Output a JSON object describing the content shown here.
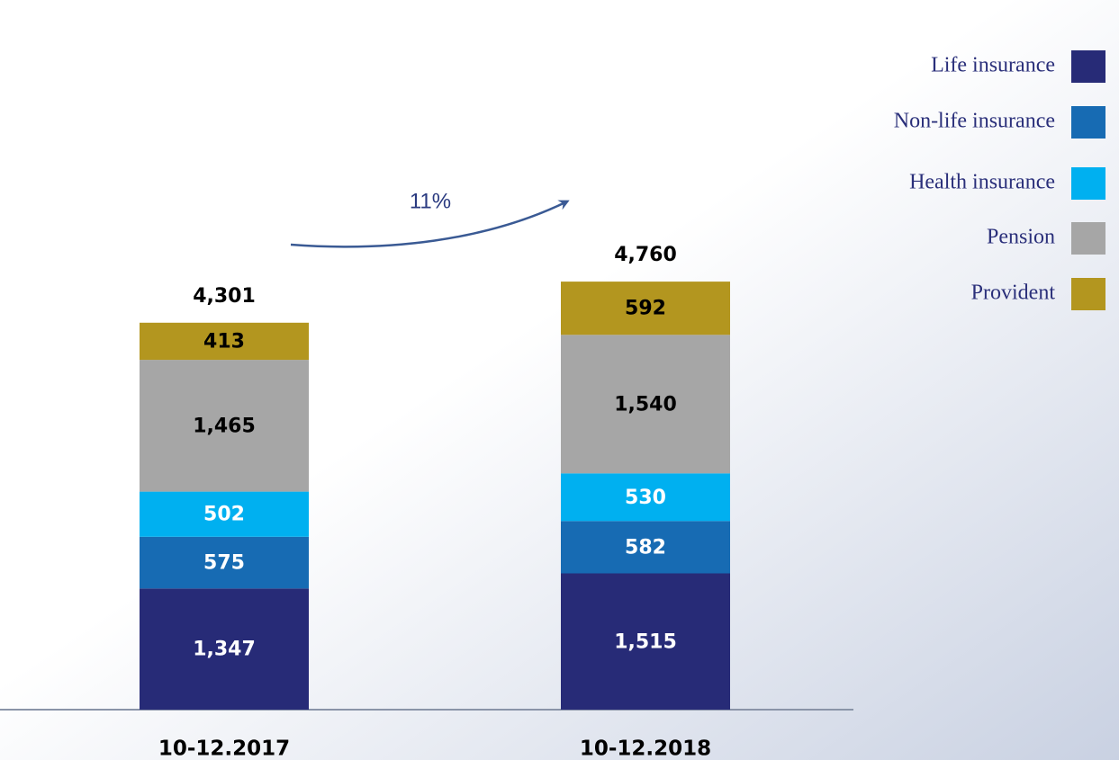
{
  "chart_data": {
    "type": "stacked_bar",
    "categories": [
      "10-12.2017",
      "10-12.2018"
    ],
    "series": [
      {
        "name": "Life insurance",
        "color": "#272b77",
        "values": [
          1347,
          1515
        ],
        "value_labels": [
          "1,347",
          "1,515"
        ]
      },
      {
        "name": "Non-life insurance",
        "color": "#176bb3",
        "values": [
          575,
          582
        ]
      },
      {
        "name": "Health insurance",
        "color": "#00b0f0",
        "values": [
          502,
          530
        ]
      },
      {
        "name": "Pension",
        "color": "#a6a6a6",
        "values": [
          1465,
          1540
        ],
        "value_labels": [
          "1,465",
          "1,540"
        ]
      },
      {
        "name": "Provident",
        "color": "#b3961f",
        "values": [
          413,
          592
        ]
      }
    ],
    "totals": [
      4301,
      4760
    ],
    "total_labels": [
      "4,301",
      "4,760"
    ],
    "annotation": "11%",
    "ylim": [
      0,
      7000
    ],
    "legend": "top-right"
  }
}
